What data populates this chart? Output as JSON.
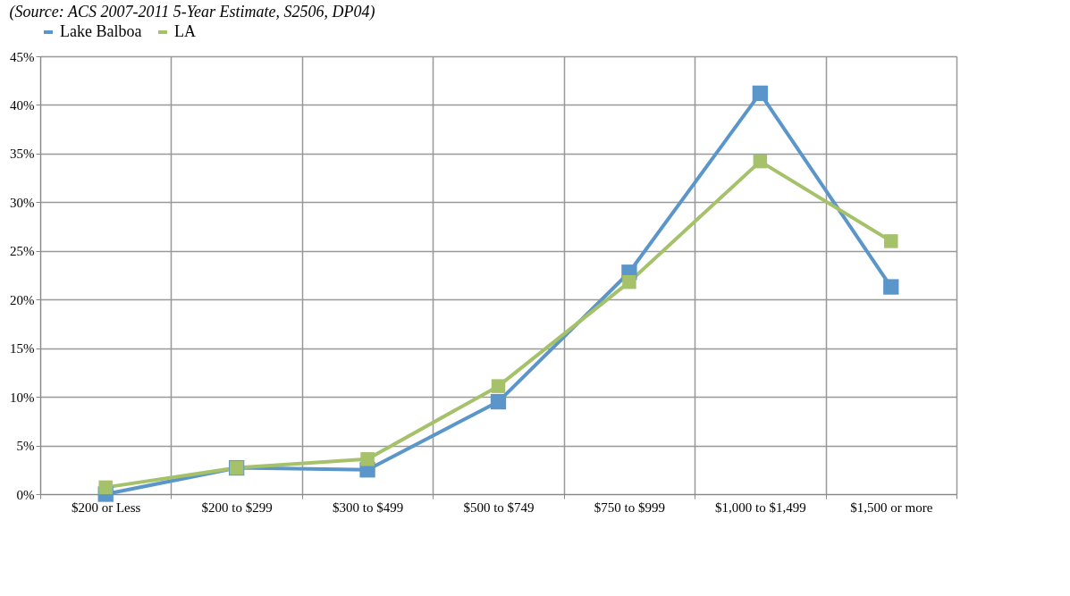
{
  "chart_data": {
    "type": "line",
    "annotations": [
      "(Source: ACS 2007-2011 5-Year Estimate, S2506, DP04)"
    ],
    "categories": [
      "$200 or Less",
      "$200 to $299",
      "$300 to $499",
      "$500 to $749",
      "$750 to $999",
      "$1,000 to $1,499",
      "$1,500 or more"
    ],
    "series": [
      {
        "name": "Lake Balboa",
        "color": "#5b96cb",
        "values": [
          0.0,
          2.7,
          2.5,
          9.5,
          22.8,
          41.2,
          21.3
        ]
      },
      {
        "name": "LA",
        "color": "#a5c26a",
        "values": [
          0.7,
          2.7,
          3.6,
          11.1,
          21.8,
          34.2,
          26.0
        ]
      }
    ],
    "ylim": [
      0,
      45
    ],
    "yticks": [
      {
        "value": 0,
        "label": "0%"
      },
      {
        "value": 5,
        "label": "5%"
      },
      {
        "value": 10,
        "label": "10%"
      },
      {
        "value": 15,
        "label": "15%"
      },
      {
        "value": 20,
        "label": "20%"
      },
      {
        "value": 25,
        "label": "25%"
      },
      {
        "value": 30,
        "label": "30%"
      },
      {
        "value": 35,
        "label": "35%"
      },
      {
        "value": 40,
        "label": "40%"
      },
      {
        "value": 45,
        "label": "45%"
      }
    ],
    "grid": true,
    "legend": "top",
    "marker": "square",
    "line_style": "solid"
  }
}
